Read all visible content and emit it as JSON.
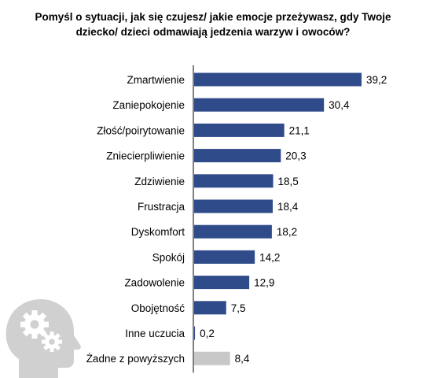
{
  "title_lines": [
    "Pomyśl o sytuacji, jak się czujesz/ jakie emocje przeżywasz, gdy Twoje",
    "dziecko/ dzieci odmawiają jedzenia warzyw i owoców?"
  ],
  "icon": "head-with-gears-icon",
  "colors": {
    "main_bar": "#2F4B8A",
    "none_bar": "#C8C8C8",
    "icon": "#D0D0D0",
    "axis": "#000000"
  },
  "chart_data": {
    "type": "bar",
    "orientation": "horizontal",
    "title": "Pomyśl o sytuacji, jak się czujesz/ jakie emocje przeżywasz, gdy Twoje dziecko/ dzieci odmawiają jedzenia warzyw i owoców?",
    "categories": [
      "Zmartwienie",
      "Zaniepokojenie",
      "Złość/poirytowanie",
      "Zniecierpliwienie",
      "Zdziwienie",
      "Frustracja",
      "Dyskomfort",
      "Spokój",
      "Zadowolenie",
      "Obojętność",
      "Inne uczucia",
      "Żadne z powyższych"
    ],
    "values": [
      39.2,
      30.4,
      21.1,
      20.3,
      18.5,
      18.4,
      18.2,
      14.2,
      12.9,
      7.5,
      0.2,
      8.4
    ],
    "value_labels": [
      "39,2",
      "30,4",
      "21,1",
      "20,3",
      "18,5",
      "18,4",
      "18,2",
      "14,2",
      "12,9",
      "7,5",
      "0,2",
      "8,4"
    ],
    "highlight_gray": [
      "Żadne z powyższych"
    ],
    "xlim": [
      0,
      39.2
    ],
    "grid": false,
    "legend": "none"
  }
}
